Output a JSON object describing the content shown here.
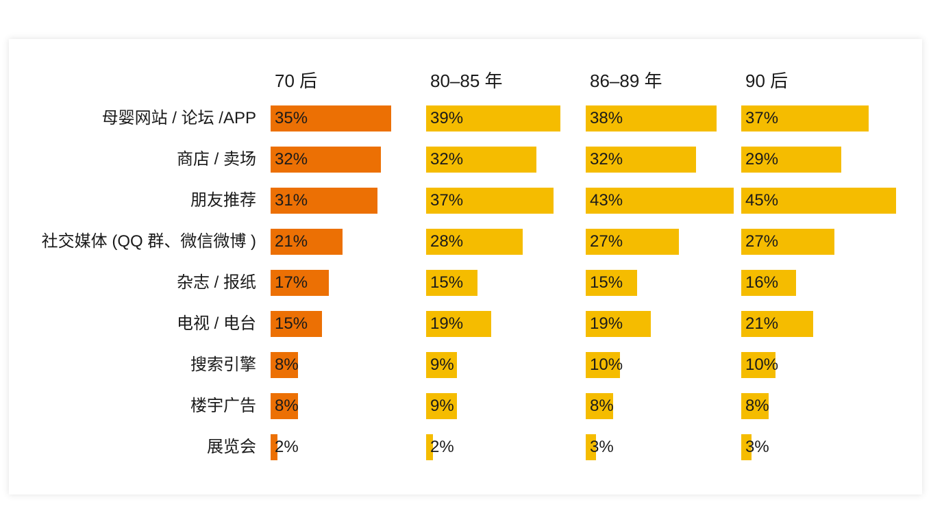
{
  "chart_data": {
    "type": "bar",
    "title": "",
    "categories": [
      "母婴网站 / 论坛 /APP",
      "商店 / 卖场",
      "朋友推荐",
      "社交媒体 (QQ 群、微信微博 )",
      "杂志 / 报纸",
      "电视 / 电台",
      "搜索引擎",
      "楼宇广告",
      "展览会"
    ],
    "series": [
      {
        "name": "70 后",
        "color": "#EC7004",
        "values": [
          35,
          32,
          31,
          21,
          17,
          15,
          8,
          8,
          2
        ]
      },
      {
        "name": "80–85 年",
        "color": "#F5BC00",
        "values": [
          39,
          32,
          37,
          28,
          15,
          19,
          9,
          9,
          2
        ]
      },
      {
        "name": "86–89 年",
        "color": "#F5BC00",
        "values": [
          38,
          32,
          43,
          27,
          15,
          19,
          10,
          8,
          3
        ]
      },
      {
        "name": "90 后",
        "color": "#F5BC00",
        "values": [
          37,
          29,
          45,
          27,
          16,
          21,
          10,
          8,
          3
        ]
      }
    ],
    "value_suffix": "%",
    "xlim": [
      0,
      50
    ],
    "grid": false
  }
}
